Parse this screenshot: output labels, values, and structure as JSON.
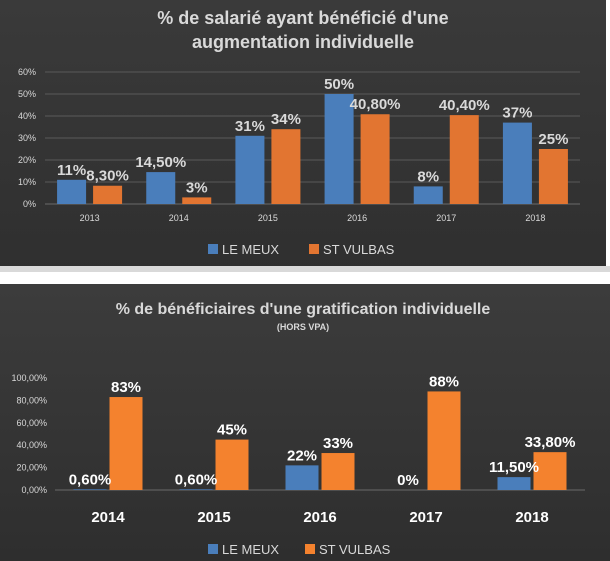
{
  "colors": {
    "le_meux": "#4a7ebb",
    "st_vulbas": "#e27531",
    "st_vulbas_bright": "#f4822e"
  },
  "chart_data": [
    {
      "type": "bar",
      "title_line1": "% de salarié ayant bénéficié d'une",
      "title_line2": "augmentation individuelle",
      "categories": [
        "2013",
        "2014",
        "2015",
        "2016",
        "2017",
        "2018"
      ],
      "yticks": [
        "0%",
        "10%",
        "20%",
        "30%",
        "40%",
        "50%",
        "60%"
      ],
      "ylim": [
        0,
        60
      ],
      "series": [
        {
          "name": "LE MEUX",
          "values": [
            11,
            14.5,
            31,
            50,
            8,
            37
          ],
          "labels": [
            "11%",
            "14,50%",
            "31%",
            "50%",
            "8%",
            "37%"
          ]
        },
        {
          "name": "ST VULBAS",
          "values": [
            8.3,
            3,
            34,
            40.8,
            40.4,
            25
          ],
          "labels": [
            "8,30%",
            "3%",
            "34%",
            "40,80%",
            "40,40%",
            "25%"
          ]
        }
      ],
      "legend": "bottom"
    },
    {
      "type": "bar",
      "title_line1": "% de bénéficiaires d'une gratification individuelle",
      "subtitle": "(HORS VPA)",
      "categories": [
        "2014",
        "2015",
        "2016",
        "2017",
        "2018"
      ],
      "yticks": [
        "0,00%",
        "20,00%",
        "40,00%",
        "60,00%",
        "80,00%",
        "100,00%"
      ],
      "ylim": [
        0,
        100
      ],
      "series": [
        {
          "name": "LE MEUX",
          "values": [
            0.6,
            0.6,
            22,
            0,
            11.5
          ],
          "labels": [
            "0,60%",
            "0,60%",
            "22%",
            "0%",
            "11,50%"
          ]
        },
        {
          "name": "ST VULBAS",
          "values": [
            83,
            45,
            33,
            88,
            33.8
          ],
          "labels": [
            "83%",
            "45%",
            "33%",
            "88%",
            "33,80%"
          ]
        }
      ],
      "legend": "bottom"
    }
  ]
}
